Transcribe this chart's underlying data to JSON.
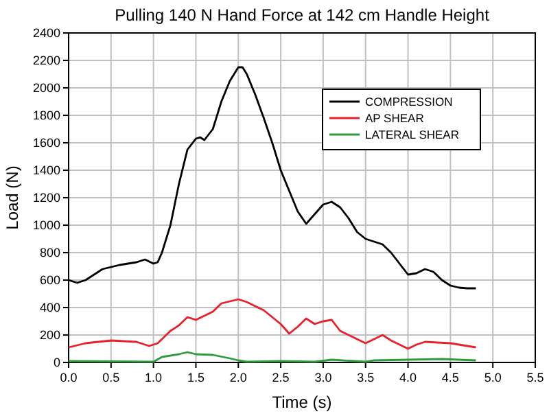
{
  "chart_data": {
    "type": "line",
    "title": "Pulling 140 N Hand Force at 142 cm Handle Height",
    "xlabel": "Time (s)",
    "ylabel": "Load (N)",
    "xlim": [
      0,
      5.5
    ],
    "xticks": [
      {
        "value": 0,
        "label": "0.0"
      },
      {
        "value": 0.5,
        "label": "0.5"
      },
      {
        "value": 1,
        "label": "1.0"
      },
      {
        "value": 1.5,
        "label": "1.5"
      },
      {
        "value": 2,
        "label": "2.0"
      },
      {
        "value": 2.5,
        "label": "2.5"
      },
      {
        "value": 3,
        "label": "3.0"
      },
      {
        "value": 3.5,
        "label": "3.5"
      },
      {
        "value": 4,
        "label": "4.0"
      },
      {
        "value": 4.5,
        "label": "4.5"
      },
      {
        "value": 5,
        "label": "5.0"
      },
      {
        "value": 5.5,
        "label": "5.5"
      }
    ],
    "ylim": [
      0,
      2400
    ],
    "yticks": [
      0,
      200,
      400,
      600,
      800,
      1000,
      1200,
      1400,
      1600,
      1800,
      2000,
      2200,
      2400
    ],
    "grid": true,
    "legend": "top right",
    "marker": "none",
    "line_style": "solid",
    "series": [
      {
        "name": "COMPRESSION",
        "color": "#000000",
        "x": [
          0,
          0.1,
          0.2,
          0.4,
          0.6,
          0.8,
          0.9,
          1.0,
          1.05,
          1.1,
          1.2,
          1.3,
          1.4,
          1.5,
          1.55,
          1.6,
          1.7,
          1.8,
          1.9,
          2.0,
          2.05,
          2.1,
          2.2,
          2.3,
          2.4,
          2.5,
          2.6,
          2.7,
          2.8,
          2.9,
          3.0,
          3.1,
          3.2,
          3.3,
          3.4,
          3.5,
          3.6,
          3.7,
          3.8,
          3.9,
          4.0,
          4.1,
          4.2,
          4.3,
          4.4,
          4.5,
          4.6,
          4.7,
          4.8
        ],
        "values": [
          600,
          580,
          600,
          680,
          710,
          730,
          750,
          720,
          730,
          800,
          1000,
          1300,
          1550,
          1630,
          1640,
          1620,
          1700,
          1900,
          2050,
          2150,
          2150,
          2100,
          1950,
          1780,
          1600,
          1400,
          1250,
          1100,
          1010,
          1080,
          1150,
          1170,
          1130,
          1050,
          950,
          900,
          880,
          860,
          800,
          720,
          640,
          650,
          680,
          660,
          600,
          560,
          545,
          540,
          540
        ]
      },
      {
        "name": "AP SHEAR",
        "color": "#e8202a",
        "x": [
          0,
          0.2,
          0.5,
          0.8,
          0.95,
          1.05,
          1.2,
          1.3,
          1.4,
          1.5,
          1.6,
          1.7,
          1.8,
          2.0,
          2.1,
          2.3,
          2.5,
          2.6,
          2.7,
          2.8,
          2.9,
          3.0,
          3.1,
          3.2,
          3.4,
          3.5,
          3.6,
          3.7,
          3.8,
          4.0,
          4.1,
          4.2,
          4.5,
          4.8
        ],
        "values": [
          110,
          140,
          160,
          150,
          120,
          140,
          230,
          270,
          330,
          310,
          340,
          370,
          430,
          460,
          440,
          380,
          280,
          210,
          260,
          320,
          280,
          300,
          310,
          230,
          170,
          140,
          170,
          200,
          160,
          100,
          130,
          150,
          140,
          110
        ]
      },
      {
        "name": "LATERAL SHEAR",
        "color": "#2e9a3c",
        "x": [
          0,
          1.0,
          1.1,
          1.3,
          1.4,
          1.5,
          1.7,
          1.9,
          2.0,
          2.1,
          2.5,
          2.9,
          3.1,
          3.5,
          3.6,
          4.0,
          4.4,
          4.8
        ],
        "values": [
          10,
          5,
          40,
          60,
          75,
          60,
          55,
          30,
          15,
          5,
          10,
          5,
          20,
          5,
          15,
          20,
          25,
          15
        ]
      }
    ]
  }
}
